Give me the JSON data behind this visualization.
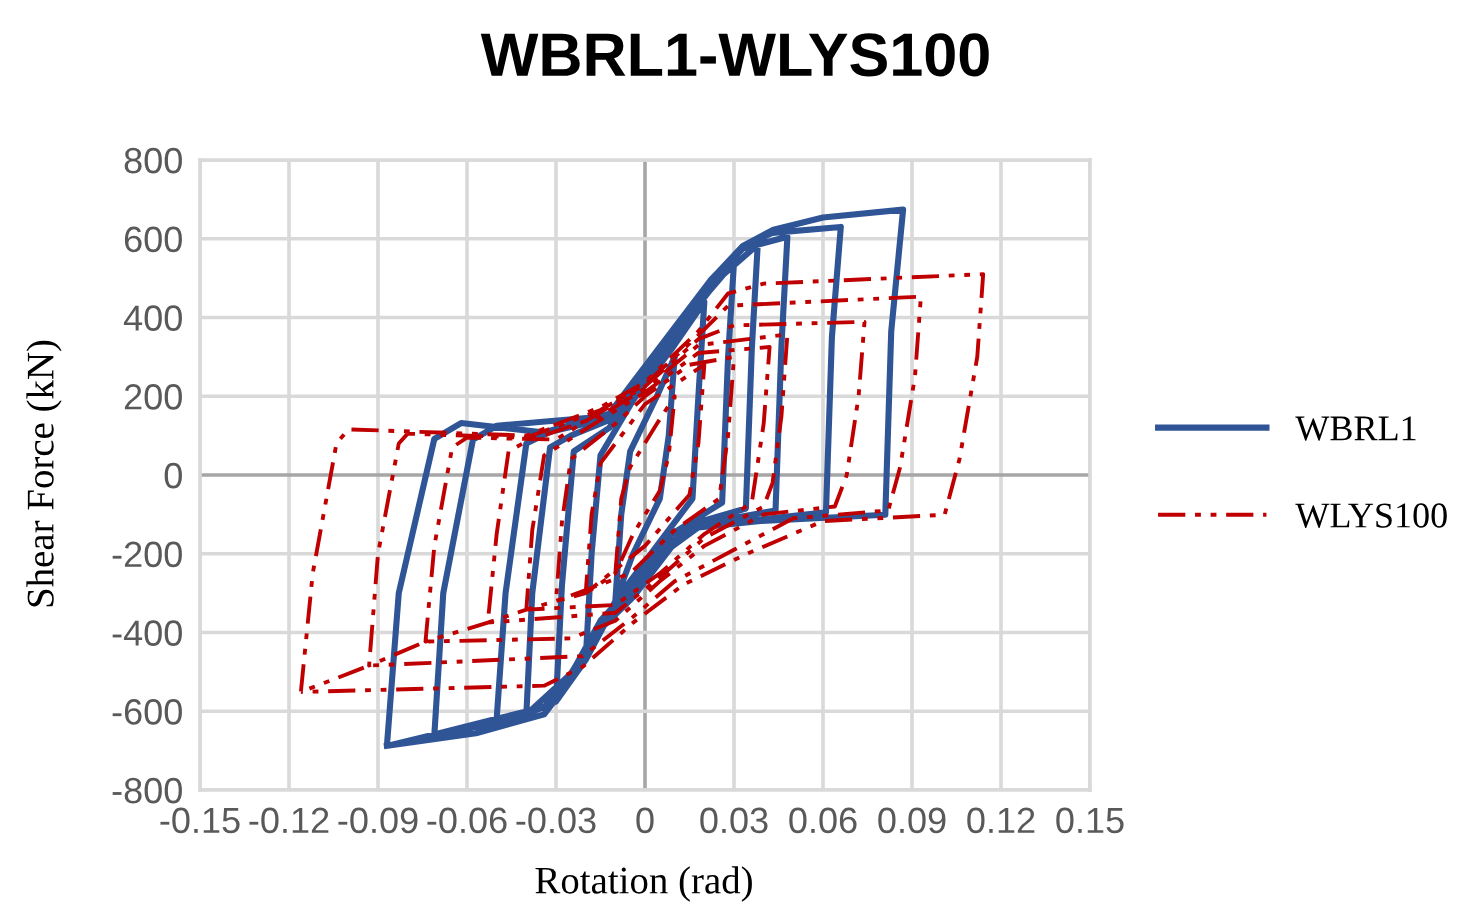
{
  "chart_data": {
    "type": "line",
    "title": "WBRL1-WLYS100",
    "xlabel": "Rotation (rad)",
    "ylabel": "Shear Force (kN)",
    "xlim": [
      -0.15,
      0.15
    ],
    "ylim": [
      -800,
      800
    ],
    "xticks": [
      -0.15,
      -0.12,
      -0.09,
      -0.06,
      -0.03,
      0,
      0.03,
      0.06,
      0.09,
      0.12,
      0.15
    ],
    "yticks": [
      -800,
      -600,
      -400,
      -200,
      0,
      200,
      400,
      600,
      800
    ],
    "grid": true,
    "legend": "right",
    "marker": "none",
    "series": [
      {
        "name": "WBRL1",
        "color": "#2f5597",
        "line_style": "solid",
        "x": [
          -0.01,
          -0.008,
          -0.005,
          0.004,
          0.01,
          0.008,
          0.005,
          -0.004,
          -0.01,
          -0.02,
          -0.018,
          -0.015,
          -0.004,
          0.009,
          0.02,
          0.018,
          0.016,
          0.004,
          -0.008,
          -0.02,
          -0.03,
          -0.028,
          -0.024,
          -0.012,
          -0.004,
          0.009,
          0.022,
          0.03,
          0.028,
          0.026,
          0.009,
          -0.004,
          -0.015,
          -0.03,
          -0.04,
          -0.038,
          -0.032,
          -0.025,
          -0.012,
          -0.004,
          0.009,
          0.022,
          0.038,
          0.036,
          0.034,
          0.018,
          0.009,
          -0.004,
          -0.015,
          -0.025,
          -0.04,
          -0.05,
          -0.047,
          -0.04,
          -0.032,
          -0.012,
          -0.004,
          0.009,
          0.022,
          0.033,
          0.048,
          0.046,
          0.044,
          0.018,
          0.009,
          -0.004,
          -0.015,
          -0.025,
          -0.034,
          -0.05,
          -0.071,
          -0.068,
          -0.058,
          -0.05,
          -0.012,
          -0.004,
          0.009,
          0.022,
          0.033,
          0.043,
          0.066,
          0.063,
          0.061,
          0.018,
          0.009,
          -0.004,
          -0.015,
          -0.025,
          -0.034,
          -0.05,
          -0.071,
          -0.087,
          -0.083,
          -0.071,
          -0.062,
          -0.034,
          -0.012,
          -0.004,
          0.009,
          0.022,
          0.033,
          0.043,
          0.06,
          0.087,
          0.083,
          0.081,
          0.039,
          0.018,
          0.009,
          -0.004,
          -0.015,
          -0.025,
          -0.034,
          -0.057,
          -0.087
        ],
        "values": [
          -320,
          -100,
          60,
          200,
          300,
          100,
          -60,
          -200,
          -320,
          -470,
          -200,
          50,
          190,
          320,
          440,
          200,
          -60,
          -180,
          -300,
          -470,
          -575,
          -280,
          60,
          120,
          215,
          345,
          470,
          540,
          300,
          -70,
          -150,
          -280,
          -370,
          -575,
          -608,
          -300,
          70,
          100,
          140,
          225,
          355,
          480,
          585,
          320,
          -85,
          -120,
          -170,
          -295,
          -380,
          -505,
          -608,
          -619,
          -300,
          80,
          110,
          145,
          230,
          360,
          490,
          575,
          605,
          330,
          -90,
          -125,
          -175,
          -300,
          -385,
          -510,
          -590,
          -619,
          -659,
          -300,
          90,
          125,
          150,
          236,
          365,
          494,
          580,
          615,
          630,
          350,
          -95,
          -130,
          -182,
          -310,
          -391,
          -519,
          -590,
          -630,
          -659,
          -688,
          -300,
          92,
          132,
          108,
          156,
          236,
          365,
          494,
          582,
          622,
          654,
          674,
          365,
          -101,
          -117,
          -133,
          -182,
          -310,
          -391,
          -519,
          -608,
          -656,
          -688
        ]
      },
      {
        "name": "WLYS100",
        "color": "#c00000",
        "line_style": "dashed",
        "x": [
          -0.01,
          -0.008,
          -0.005,
          0.004,
          0.01,
          0.008,
          0.005,
          -0.004,
          -0.01,
          -0.02,
          -0.018,
          -0.015,
          0.0,
          0.02,
          0.018,
          0.015,
          0.0,
          -0.02,
          -0.03,
          -0.028,
          -0.025,
          -0.01,
          0.0,
          0.015,
          0.03,
          0.028,
          0.025,
          0.01,
          -0.005,
          -0.03,
          -0.04,
          -0.038,
          -0.034,
          -0.015,
          0.0,
          0.018,
          0.042,
          0.04,
          0.036,
          0.02,
          0.005,
          -0.01,
          -0.04,
          -0.053,
          -0.05,
          -0.046,
          -0.04,
          -0.015,
          0.0,
          0.018,
          0.048,
          0.046,
          0.043,
          0.04,
          0.02,
          0.005,
          -0.01,
          -0.053,
          -0.074,
          -0.071,
          -0.065,
          -0.06,
          -0.03,
          -0.015,
          0.0,
          0.018,
          0.03,
          0.074,
          0.072,
          0.068,
          0.064,
          0.04,
          0.02,
          0.005,
          -0.01,
          -0.025,
          -0.074,
          -0.093,
          -0.09,
          -0.083,
          -0.08,
          -0.04,
          -0.015,
          0.0,
          0.018,
          0.028,
          0.093,
          0.091,
          0.086,
          0.082,
          0.05,
          0.03,
          0.01,
          -0.004,
          -0.021,
          -0.093,
          -0.116,
          -0.112,
          -0.104,
          -0.1,
          -0.04,
          -0.015,
          0.0,
          0.018,
          0.028,
          0.04,
          0.114,
          0.112,
          0.106,
          0.101,
          0.06,
          0.035,
          0.013,
          -0.004,
          -0.021,
          -0.034,
          -0.116
        ],
        "values": [
          -250,
          -60,
          20,
          130,
          200,
          50,
          -40,
          -150,
          -250,
          -300,
          -100,
          30,
          180,
          280,
          80,
          -50,
          -180,
          -300,
          -320,
          -120,
          40,
          130,
          200,
          280,
          300,
          100,
          -60,
          -140,
          -250,
          -320,
          -342,
          -140,
          50,
          140,
          210,
          310,
          325,
          130,
          -70,
          -150,
          -250,
          -330,
          -342,
          -375,
          -150,
          60,
          85,
          150,
          220,
          330,
          357,
          150,
          -20,
          -80,
          -160,
          -260,
          -350,
          -375,
          -423,
          -180,
          70,
          95,
          90,
          160,
          225,
          345,
          380,
          389,
          200,
          0,
          -80,
          -100,
          -180,
          -270,
          -370,
          -415,
          -423,
          -484,
          -200,
          80,
          105,
          95,
          165,
          230,
          355,
          430,
          453,
          250,
          20,
          -90,
          -110,
          -190,
          -270,
          -360,
          -460,
          -484,
          -551,
          -250,
          80,
          116,
          100,
          172,
          236,
          365,
          461,
          486,
          510,
          300,
          40,
          -101,
          -117,
          -198,
          -278,
          -375,
          -487,
          -535,
          -551
        ]
      }
    ]
  }
}
